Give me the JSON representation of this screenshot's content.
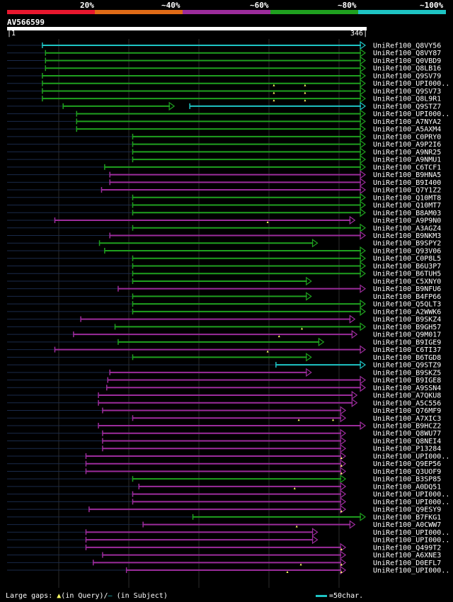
{
  "legend": [
    {
      "label": "20%",
      "color": "#e8172e"
    },
    {
      "label": "~40%",
      "color": "#e06b17"
    },
    {
      "label": "~60%",
      "color": "#9c2c9c"
    },
    {
      "label": "~80%",
      "color": "#1fa01f"
    },
    {
      "label": "~100%",
      "color": "#1ec4c4"
    }
  ],
  "query": {
    "id": "AV566599",
    "start": "1",
    "end": "346"
  },
  "alignment_data": {
    "query_length": 346,
    "hits": [
      {
        "name": "UniRef100_Q8VY56",
        "start": 35,
        "end": 346,
        "color": "cyan",
        "dot": false,
        "q_gaps": []
      },
      {
        "name": "UniRef100_Q8VY87",
        "start": 38,
        "end": 346,
        "color": "green",
        "dot": false,
        "q_gaps": []
      },
      {
        "name": "UniRef100_Q0VBD9",
        "start": 38,
        "end": 346,
        "color": "green",
        "dot": false,
        "q_gaps": []
      },
      {
        "name": "UniRef100_Q8LB16",
        "start": 38,
        "end": 346,
        "color": "green",
        "dot": false,
        "q_gaps": []
      },
      {
        "name": "UniRef100_Q9SV79",
        "start": 35,
        "end": 346,
        "color": "green",
        "dot": false,
        "q_gaps": []
      },
      {
        "name": "UniRef100_UPI000..",
        "start": 35,
        "end": 346,
        "color": "green",
        "dot": false,
        "q_gaps": [
          258,
          288
        ]
      },
      {
        "name": "UniRef100_Q9SV73",
        "start": 35,
        "end": 346,
        "color": "green",
        "dot": false,
        "q_gaps": [
          258,
          288
        ]
      },
      {
        "name": "UniRef100_Q8L9R1",
        "start": 35,
        "end": 346,
        "color": "green",
        "dot": false,
        "q_gaps": [
          258,
          288
        ]
      },
      {
        "name": "UniRef100_Q9STZ7",
        "start": 55,
        "end": 162,
        "color": "green",
        "dot": false,
        "q_gaps": [],
        "second": {
          "start": 177,
          "end": 346,
          "color": "cyan"
        }
      },
      {
        "name": "UniRef100_UPI000..",
        "start": 68,
        "end": 346,
        "color": "green",
        "dot": false,
        "q_gaps": []
      },
      {
        "name": "UniRef100_A7NYA2",
        "start": 68,
        "end": 346,
        "color": "green",
        "dot": false,
        "q_gaps": []
      },
      {
        "name": "UniRef100_A5AXM4",
        "start": 68,
        "end": 346,
        "color": "green",
        "dot": false,
        "q_gaps": []
      },
      {
        "name": "UniRef100_C0PRY0",
        "start": 122,
        "end": 346,
        "color": "green",
        "dot": false,
        "q_gaps": []
      },
      {
        "name": "UniRef100_A9P2I6",
        "start": 122,
        "end": 346,
        "color": "green",
        "dot": false,
        "q_gaps": []
      },
      {
        "name": "UniRef100_A9NR25",
        "start": 122,
        "end": 346,
        "color": "green",
        "dot": false,
        "q_gaps": []
      },
      {
        "name": "UniRef100_A9NMU1",
        "start": 122,
        "end": 346,
        "color": "green",
        "dot": false,
        "q_gaps": []
      },
      {
        "name": "UniRef100_C6TCF1",
        "start": 95,
        "end": 346,
        "color": "green",
        "dot": false,
        "q_gaps": []
      },
      {
        "name": "UniRef100_B9HNA5",
        "start": 100,
        "end": 346,
        "color": "purple",
        "dot": false,
        "q_gaps": []
      },
      {
        "name": "UniRef100_B9I400",
        "start": 100,
        "end": 346,
        "color": "purple",
        "dot": false,
        "q_gaps": []
      },
      {
        "name": "UniRef100_Q7Y1Z2",
        "start": 92,
        "end": 346,
        "color": "purple",
        "dot": false,
        "q_gaps": []
      },
      {
        "name": "UniRef100_Q10MT8",
        "start": 122,
        "end": 346,
        "color": "green",
        "dot": false,
        "q_gaps": []
      },
      {
        "name": "UniRef100_Q10MT7",
        "start": 122,
        "end": 346,
        "color": "green",
        "dot": false,
        "q_gaps": []
      },
      {
        "name": "UniRef100_B8AM03",
        "start": 122,
        "end": 346,
        "color": "green",
        "dot": false,
        "q_gaps": []
      },
      {
        "name": "UniRef100_A9P9N0",
        "start": 47,
        "end": 336,
        "color": "purple",
        "dot": false,
        "q_gaps": [
          252
        ]
      },
      {
        "name": "UniRef100_A3AGZ4",
        "start": 122,
        "end": 346,
        "color": "green",
        "dot": false,
        "q_gaps": []
      },
      {
        "name": "UniRef100_B9NKM3",
        "start": 100,
        "end": 346,
        "color": "purple",
        "dot": false,
        "q_gaps": []
      },
      {
        "name": "UniRef100_B9SPY2",
        "start": 90,
        "end": 300,
        "color": "green",
        "dot": false,
        "q_gaps": []
      },
      {
        "name": "UniRef100_Q93V06",
        "start": 95,
        "end": 346,
        "color": "green",
        "dot": false,
        "q_gaps": []
      },
      {
        "name": "UniRef100_C0P8L5",
        "start": 122,
        "end": 346,
        "color": "green",
        "dot": false,
        "q_gaps": []
      },
      {
        "name": "UniRef100_B6U3P7",
        "start": 122,
        "end": 346,
        "color": "green",
        "dot": false,
        "q_gaps": []
      },
      {
        "name": "UniRef100_B6TUH5",
        "start": 122,
        "end": 346,
        "color": "green",
        "dot": false,
        "q_gaps": []
      },
      {
        "name": "UniRef100_C5XNY0",
        "start": 122,
        "end": 294,
        "color": "green",
        "dot": false,
        "q_gaps": []
      },
      {
        "name": "UniRef100_B9NFU6",
        "start": 108,
        "end": 346,
        "color": "purple",
        "dot": false,
        "q_gaps": []
      },
      {
        "name": "UniRef100_B4FP66",
        "start": 122,
        "end": 294,
        "color": "green",
        "dot": false,
        "q_gaps": []
      },
      {
        "name": "UniRef100_Q5QLT3",
        "start": 122,
        "end": 346,
        "color": "green",
        "dot": false,
        "q_gaps": []
      },
      {
        "name": "UniRef100_A2WWK6",
        "start": 122,
        "end": 346,
        "color": "green",
        "dot": false,
        "q_gaps": []
      },
      {
        "name": "UniRef100_B9SKZ4",
        "start": 72,
        "end": 336,
        "color": "purple",
        "dot": false,
        "q_gaps": []
      },
      {
        "name": "UniRef100_B9GH57",
        "start": 105,
        "end": 346,
        "color": "green",
        "dot": false,
        "q_gaps": [
          285
        ]
      },
      {
        "name": "UniRef100_Q9M017",
        "start": 65,
        "end": 338,
        "color": "purple",
        "dot": false,
        "q_gaps": [
          263
        ]
      },
      {
        "name": "UniRef100_B9IGE9",
        "start": 108,
        "end": 306,
        "color": "green",
        "dot": false,
        "q_gaps": []
      },
      {
        "name": "UniRef100_C6TI37",
        "start": 47,
        "end": 346,
        "color": "purple",
        "dot": false,
        "q_gaps": [
          252
        ]
      },
      {
        "name": "UniRef100_B6TGD8",
        "start": 122,
        "end": 294,
        "color": "green",
        "dot": false,
        "q_gaps": []
      },
      {
        "name": "UniRef100_Q9STZ9",
        "start": 260,
        "end": 346,
        "color": "cyan",
        "dot": false,
        "q_gaps": []
      },
      {
        "name": "UniRef100_B9SKZ5",
        "start": 100,
        "end": 294,
        "color": "purple",
        "dot": false,
        "q_gaps": []
      },
      {
        "name": "UniRef100_B9IGE8",
        "start": 98,
        "end": 346,
        "color": "purple",
        "dot": false,
        "q_gaps": []
      },
      {
        "name": "UniRef100_A9SSN4",
        "start": 97,
        "end": 346,
        "color": "purple",
        "dot": false,
        "q_gaps": []
      },
      {
        "name": "UniRef100_A7QKU8",
        "start": 89,
        "end": 338,
        "color": "purple",
        "dot": false,
        "q_gaps": []
      },
      {
        "name": "UniRef100_A5C556",
        "start": 89,
        "end": 338,
        "color": "purple",
        "dot": false,
        "q_gaps": []
      },
      {
        "name": "UniRef100_Q76MF9",
        "start": 93,
        "end": 327,
        "color": "purple",
        "dot": false,
        "q_gaps": []
      },
      {
        "name": "UniRef100_A7XIC3",
        "start": 122,
        "end": 327,
        "color": "purple",
        "dot": false,
        "q_gaps": [
          282,
          315
        ]
      },
      {
        "name": "UniRef100_B9HCZ2",
        "start": 89,
        "end": 346,
        "color": "purple",
        "dot": false,
        "q_gaps": []
      },
      {
        "name": "UniRef100_Q8WU77",
        "start": 93,
        "end": 327,
        "color": "purple",
        "dot": false,
        "q_gaps": []
      },
      {
        "name": "UniRef100_Q8NEI4",
        "start": 93,
        "end": 327,
        "color": "purple",
        "dot": false,
        "q_gaps": []
      },
      {
        "name": "UniRef100_P13284",
        "start": 93,
        "end": 327,
        "color": "purple",
        "dot": false,
        "q_gaps": []
      },
      {
        "name": "UniRef100_UPI000..",
        "start": 77,
        "end": 327,
        "color": "purple",
        "dot": false,
        "q_gaps": [
          323
        ]
      },
      {
        "name": "UniRef100_Q9EP56",
        "start": 77,
        "end": 327,
        "color": "purple",
        "dot": false,
        "q_gaps": [
          323
        ]
      },
      {
        "name": "UniRef100_Q3UOF9",
        "start": 77,
        "end": 327,
        "color": "purple",
        "dot": false,
        "q_gaps": [
          323
        ]
      },
      {
        "name": "UniRef100_B3SP85",
        "start": 122,
        "end": 327,
        "color": "green",
        "dot": false,
        "q_gaps": []
      },
      {
        "name": "UniRef100_A0DQ51",
        "start": 128,
        "end": 327,
        "color": "purple",
        "dot": false,
        "q_gaps": [
          278
        ]
      },
      {
        "name": "UniRef100_UPI000..",
        "start": 122,
        "end": 327,
        "color": "purple",
        "dot": false,
        "q_gaps": []
      },
      {
        "name": "UniRef100_UPI000..",
        "start": 122,
        "end": 327,
        "color": "purple",
        "dot": false,
        "q_gaps": []
      },
      {
        "name": "UniRef100_Q9ESY9",
        "start": 80,
        "end": 327,
        "color": "purple",
        "dot": false,
        "q_gaps": [
          323
        ]
      },
      {
        "name": "UniRef100_B7FKG1",
        "start": 180,
        "end": 346,
        "color": "green",
        "dot": false,
        "q_gaps": []
      },
      {
        "name": "UniRef100_A0CWW7",
        "start": 132,
        "end": 336,
        "color": "purple",
        "dot": false,
        "q_gaps": [
          280
        ]
      },
      {
        "name": "UniRef100_UPI000..",
        "start": 77,
        "end": 300,
        "color": "purple",
        "dot": false,
        "q_gaps": []
      },
      {
        "name": "UniRef100_UPI000..",
        "start": 77,
        "end": 300,
        "color": "purple",
        "dot": false,
        "q_gaps": []
      },
      {
        "name": "UniRef100_Q499T2",
        "start": 77,
        "end": 327,
        "color": "purple",
        "dot": false,
        "q_gaps": [
          323
        ]
      },
      {
        "name": "UniRef100_A6XNE3",
        "start": 93,
        "end": 327,
        "color": "purple",
        "dot": false,
        "q_gaps": []
      },
      {
        "name": "UniRef100_D0EFL7",
        "start": 84,
        "end": 327,
        "color": "purple",
        "dot": false,
        "q_gaps": [
          284,
          323
        ]
      },
      {
        "name": "UniRef100_UPI000..",
        "start": 116,
        "end": 327,
        "color": "purple",
        "dot": false,
        "q_gaps": [
          271,
          323
        ]
      }
    ]
  },
  "colors": {
    "cyan": "#1ec4c4",
    "green": "#1fa01f",
    "purple": "#9c2c9c",
    "gap": "#ffff66",
    "pre": "#1a2a4a"
  },
  "footer": {
    "text": "Large gaps:",
    "q_text": "(in Query)/",
    "s_text": "(in Subject)",
    "scale_text": "=50char."
  }
}
